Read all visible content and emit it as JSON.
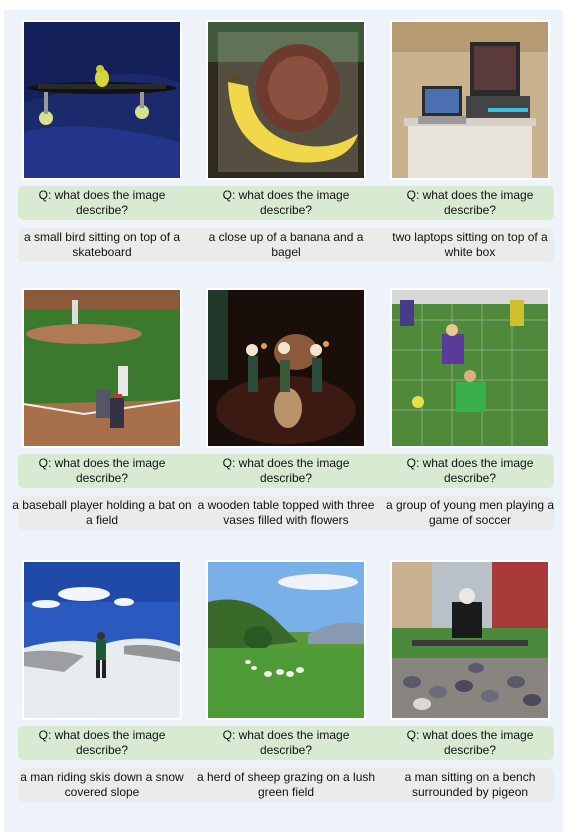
{
  "question": "Q: what does the image describe?",
  "rows": [
    {
      "items": [
        {
          "image": "skateboard-bird-photo",
          "caption": "a small bird sitting on top of a skateboard"
        },
        {
          "image": "banana-bagel-photo",
          "caption": "a close up of a banana and a bagel"
        },
        {
          "image": "laptops-photo",
          "caption": "two laptops sitting on top of a white box"
        }
      ]
    },
    {
      "items": [
        {
          "image": "baseball-photo",
          "caption": "a baseball player holding a bat on a field"
        },
        {
          "image": "vases-table-photo",
          "caption": "a wooden table topped with three vases filled with flowers"
        },
        {
          "image": "soccer-photo",
          "caption": "a group of young men playing a game of soccer"
        }
      ]
    },
    {
      "items": [
        {
          "image": "skier-photo",
          "caption": "a man riding skis down a snow covered slope"
        },
        {
          "image": "sheep-field-photo",
          "caption": "a herd of sheep grazing on a lush green field"
        },
        {
          "image": "bench-pigeons-photo",
          "caption": "a man sitting on a bench surrounded by pigeon"
        }
      ]
    }
  ]
}
